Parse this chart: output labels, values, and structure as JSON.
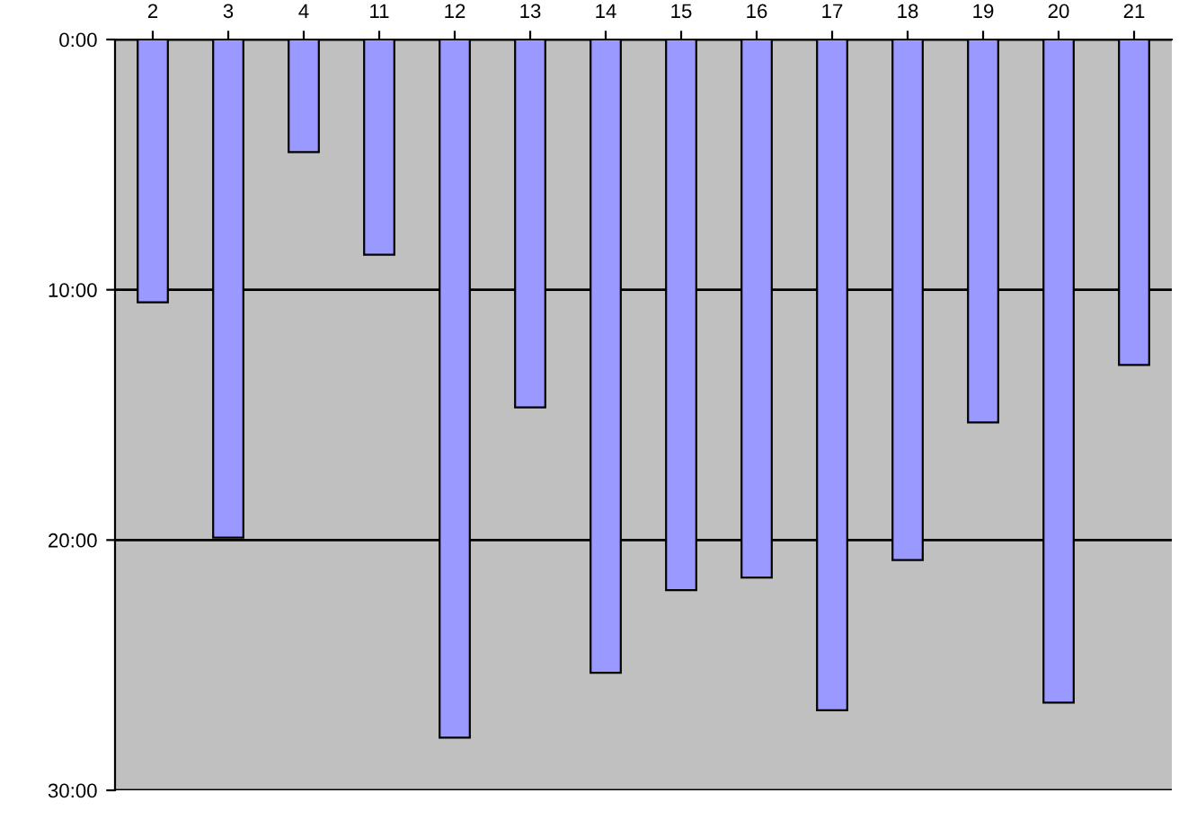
{
  "chart_data": {
    "type": "bar",
    "categories": [
      "2",
      "3",
      "4",
      "11",
      "12",
      "13",
      "14",
      "15",
      "16",
      "17",
      "18",
      "19",
      "20",
      "21"
    ],
    "values": [
      10.5,
      19.9,
      4.5,
      8.6,
      27.9,
      14.7,
      25.3,
      22.0,
      21.5,
      26.8,
      20.8,
      15.3,
      26.5,
      13.0
    ],
    "color": "#9999ff",
    "ylim": [
      30,
      0
    ],
    "yticks": [
      {
        "value": 0,
        "label": "0:00"
      },
      {
        "value": 10,
        "label": "10:00"
      },
      {
        "value": 20,
        "label": "20:00"
      },
      {
        "value": 30,
        "label": "30:00"
      }
    ],
    "grid": "y"
  }
}
